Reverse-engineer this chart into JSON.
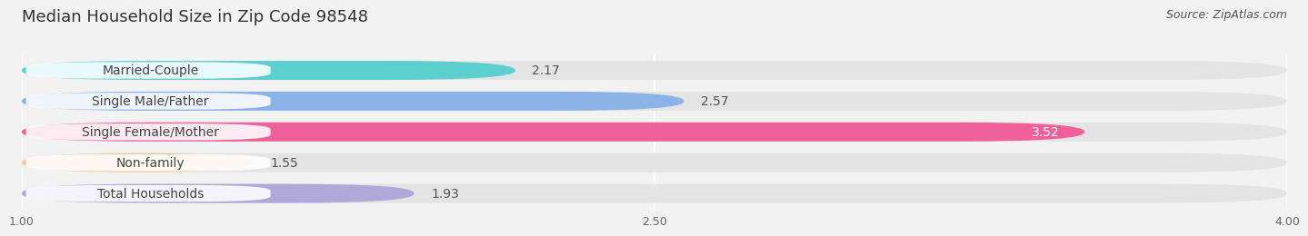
{
  "title": "Median Household Size in Zip Code 98548",
  "source": "Source: ZipAtlas.com",
  "categories": [
    "Married-Couple",
    "Single Male/Father",
    "Single Female/Mother",
    "Non-family",
    "Total Households"
  ],
  "values": [
    2.17,
    2.57,
    3.52,
    1.55,
    1.93
  ],
  "colors": [
    "#5ecfcf",
    "#8ab4e8",
    "#f0609a",
    "#f5c898",
    "#b0a8d8"
  ],
  "xlim": [
    1.0,
    4.0
  ],
  "xticks": [
    1.0,
    2.5,
    4.0
  ],
  "xtick_labels": [
    "1.00",
    "2.50",
    "4.00"
  ],
  "bar_height": 0.62,
  "background_color": "#f2f2f2",
  "bar_bg_color": "#e4e4e4",
  "label_color": "#444444",
  "value_color_white": "#ffffff",
  "value_color_dark": "#555555",
  "title_fontsize": 13,
  "source_fontsize": 9,
  "label_fontsize": 10,
  "value_fontsize": 10,
  "tick_fontsize": 9,
  "rounding": 0.3
}
